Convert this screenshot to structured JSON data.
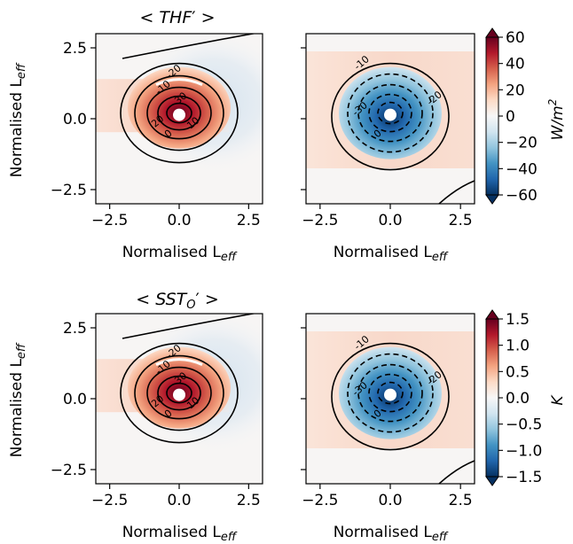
{
  "chart_data": [
    {
      "type": "heatmap",
      "row_title_main": "THF",
      "row_title_prime": "′",
      "xlabel_main": "Normalised L",
      "xlabel_sub": "eff",
      "ylabel_main": "Normalised L",
      "ylabel_sub": "eff",
      "xlim": [
        -3,
        3
      ],
      "ylim": [
        -3,
        3
      ],
      "xticks": [
        "-2.5",
        "0.0",
        "2.5"
      ],
      "yticks": [
        "2.5",
        "0.0",
        "-2.5"
      ],
      "contours": [
        {
          "level": "-20",
          "sign": "negative"
        },
        {
          "level": "-10",
          "sign": "negative"
        },
        {
          "level": "0",
          "sign": "zero"
        },
        {
          "level": "10",
          "sign": "positive"
        },
        {
          "level": "20",
          "sign": "positive"
        },
        {
          "level": "30",
          "sign": "positive"
        }
      ],
      "panel": "left",
      "feature": "warm anomaly maximum north of center"
    },
    {
      "type": "heatmap",
      "xlabel_main": "Normalised L",
      "xlabel_sub": "eff",
      "xlim": [
        -3,
        3
      ],
      "ylim": [
        -3,
        3
      ],
      "xticks": [
        "-2.5",
        "0.0",
        "2.5"
      ],
      "contours": [
        {
          "level": "-10",
          "sign": "negative"
        },
        {
          "level": "-20",
          "sign": "negative"
        },
        {
          "level": "-30",
          "sign": "negative"
        },
        {
          "level": "0",
          "sign": "zero"
        }
      ],
      "panel": "right",
      "feature": "cold anomaly at center"
    },
    {
      "type": "heatmap",
      "row_title_main": "SST",
      "row_title_sub": "O",
      "row_title_prime": "′",
      "xlabel_main": "Normalised L",
      "xlabel_sub": "eff",
      "ylabel_main": "Normalised L",
      "ylabel_sub": "eff",
      "xlim": [
        -3,
        3
      ],
      "ylim": [
        -3,
        3
      ],
      "xticks": [
        "-2.5",
        "0.0",
        "2.5"
      ],
      "yticks": [
        "2.5",
        "0.0",
        "-2.5"
      ],
      "contours": [
        {
          "level": "-20",
          "sign": "negative"
        },
        {
          "level": "-10",
          "sign": "negative"
        },
        {
          "level": "0",
          "sign": "zero"
        },
        {
          "level": "10",
          "sign": "positive"
        },
        {
          "level": "20",
          "sign": "positive"
        },
        {
          "level": "30",
          "sign": "positive"
        }
      ],
      "panel": "left",
      "feature": "warm anomaly maximum north of center"
    },
    {
      "type": "heatmap",
      "xlabel_main": "Normalised L",
      "xlabel_sub": "eff",
      "xlim": [
        -3,
        3
      ],
      "ylim": [
        -3,
        3
      ],
      "xticks": [
        "-2.5",
        "0.0",
        "2.5"
      ],
      "contours": [
        {
          "level": "-10",
          "sign": "negative"
        },
        {
          "level": "-20",
          "sign": "negative"
        },
        {
          "level": "-30",
          "sign": "negative"
        },
        {
          "level": "0",
          "sign": "zero"
        }
      ],
      "panel": "right",
      "feature": "cold anomaly at center"
    }
  ],
  "colorbars": [
    {
      "label_main": "W/m",
      "label_sup": "2",
      "vmin": -60,
      "vmax": 60,
      "ticks": [
        "60",
        "40",
        "20",
        "0",
        "−20",
        "−40",
        "−60"
      ]
    },
    {
      "label_main": "K",
      "vmin": -1.5,
      "vmax": 1.5,
      "ticks": [
        "1.5",
        "1.0",
        "0.5",
        "0.0",
        "−0.5",
        "−1.0",
        "−1.5"
      ]
    }
  ],
  "colormap": {
    "name": "RdBu_r",
    "stops": [
      "#053061",
      "#2166ac",
      "#4393c3",
      "#92c5de",
      "#d1e5f0",
      "#f7f7f7",
      "#fddbc7",
      "#f4a582",
      "#d6604d",
      "#b2182b",
      "#67001f"
    ]
  }
}
